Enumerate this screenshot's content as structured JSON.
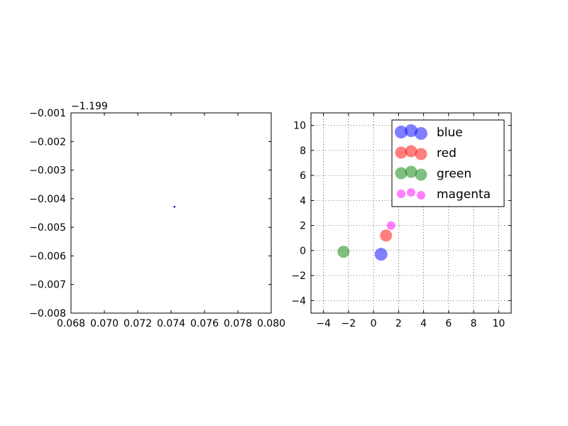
{
  "chart_data": [
    {
      "type": "scatter",
      "title": "",
      "xlabel": "",
      "ylabel": "",
      "xlim": [
        0.068,
        0.08
      ],
      "ylim": [
        -0.008,
        -0.001
      ],
      "xticks": [
        0.068,
        0.07,
        0.072,
        0.074,
        0.076,
        0.078,
        0.08
      ],
      "xtick_labels": [
        "0.068",
        "0.070",
        "0.072",
        "0.074",
        "0.076",
        "0.078",
        "0.080"
      ],
      "yticks": [
        -0.008,
        -0.007,
        -0.006,
        -0.005,
        -0.004,
        -0.003,
        -0.002,
        -0.001
      ],
      "ytick_labels": [
        "−0.008",
        "−0.007",
        "−0.006",
        "−0.005",
        "−0.004",
        "−0.003",
        "−0.002",
        "−0.001"
      ],
      "y_offset_label": "−1.199",
      "grid": false,
      "series": [
        {
          "color": "#00008b",
          "points": [
            {
              "x": 0.0742,
              "y": -0.00428
            }
          ]
        }
      ]
    },
    {
      "type": "scatter",
      "title": "",
      "xlabel": "",
      "ylabel": "",
      "xlim": [
        -5,
        11
      ],
      "ylim": [
        -5,
        11
      ],
      "xticks": [
        -4,
        -2,
        0,
        2,
        4,
        6,
        8,
        10
      ],
      "xtick_labels": [
        "−4",
        "−2",
        "0",
        "2",
        "4",
        "6",
        "8",
        "10"
      ],
      "yticks": [
        -4,
        -2,
        0,
        2,
        4,
        6,
        8,
        10
      ],
      "ytick_labels": [
        "−4",
        "−2",
        "0",
        "2",
        "4",
        "6",
        "8",
        "10"
      ],
      "grid": true,
      "legend_position": "top-right",
      "series": [
        {
          "name": "blue",
          "color": "#0000ff",
          "alpha": 0.5,
          "size": 9,
          "points": [
            {
              "x": 0.6,
              "y": -0.3
            }
          ]
        },
        {
          "name": "red",
          "color": "#ff0000",
          "alpha": 0.5,
          "size": 8.5,
          "points": [
            {
              "x": 1.0,
              "y": 1.2
            }
          ]
        },
        {
          "name": "green",
          "color": "#008000",
          "alpha": 0.5,
          "size": 8.5,
          "points": [
            {
              "x": -2.4,
              "y": -0.1
            }
          ]
        },
        {
          "name": "magenta",
          "color": "#ff00ff",
          "alpha": 0.5,
          "size": 6,
          "points": [
            {
              "x": 1.4,
              "y": 2.0
            }
          ]
        }
      ]
    }
  ]
}
